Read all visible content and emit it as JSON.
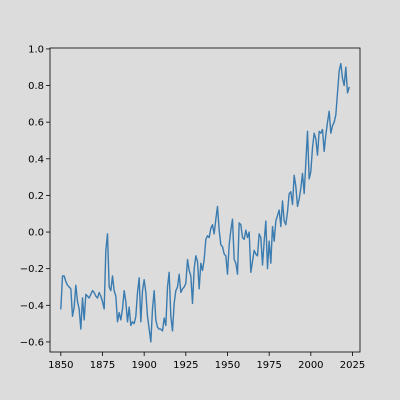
{
  "colors": {
    "background": "#dcdcdc",
    "series": "#3a7bb0",
    "axes": "#000000"
  },
  "chart_data": {
    "type": "line",
    "title": "",
    "xlabel": "",
    "ylabel": "",
    "xlim": [
      1843.5,
      2029.5
    ],
    "ylim": [
      -0.655,
      1.005
    ],
    "xticks": [
      1850,
      1875,
      1900,
      1925,
      1950,
      1975,
      2000,
      2025
    ],
    "yticks": [
      -0.6,
      -0.4,
      -0.2,
      0.0,
      0.2,
      0.4,
      0.6,
      0.8,
      1.0
    ],
    "xtick_labels": [
      "1850",
      "1875",
      "1900",
      "1925",
      "1950",
      "1975",
      "2000",
      "2025"
    ],
    "ytick_labels": [
      "−0.6",
      "−0.4",
      "−0.2",
      "0.0",
      "0.2",
      "0.4",
      "0.6",
      "0.8",
      "1.0"
    ],
    "grid": false,
    "series": [
      {
        "x": [
          1850,
          1851,
          1852,
          1853,
          1854,
          1855,
          1856,
          1857,
          1858,
          1859,
          1860,
          1861,
          1862,
          1863,
          1864,
          1865,
          1866,
          1867,
          1868,
          1869,
          1870,
          1871,
          1872,
          1873,
          1874,
          1875,
          1876,
          1877,
          1878,
          1879,
          1880,
          1881,
          1882,
          1883,
          1884,
          1885,
          1886,
          1887,
          1888,
          1889,
          1890,
          1891,
          1892,
          1893,
          1894,
          1895,
          1896,
          1897,
          1898,
          1899,
          1900,
          1901,
          1902,
          1903,
          1904,
          1905,
          1906,
          1907,
          1908,
          1909,
          1910,
          1911,
          1912,
          1913,
          1914,
          1915,
          1916,
          1917,
          1918,
          1919,
          1920,
          1921,
          1922,
          1923,
          1924,
          1925,
          1926,
          1927,
          1928,
          1929,
          1930,
          1931,
          1932,
          1933,
          1934,
          1935,
          1936,
          1937,
          1938,
          1939,
          1940,
          1941,
          1942,
          1943,
          1944,
          1945,
          1946,
          1947,
          1948,
          1949,
          1950,
          1951,
          1952,
          1953,
          1954,
          1955,
          1956,
          1957,
          1958,
          1959,
          1960,
          1961,
          1962,
          1963,
          1964,
          1965,
          1966,
          1967,
          1968,
          1969,
          1970,
          1971,
          1972,
          1973,
          1974,
          1975,
          1976,
          1977,
          1978,
          1979,
          1980,
          1981,
          1982,
          1983,
          1984,
          1985,
          1986,
          1987,
          1988,
          1989,
          1990,
          1991,
          1992,
          1993,
          1994,
          1995,
          1996,
          1997,
          1998,
          1999,
          2000,
          2001,
          2002,
          2003,
          2004,
          2005,
          2006,
          2007,
          2008,
          2009,
          2010,
          2011,
          2012,
          2013,
          2014,
          2015,
          2016,
          2017,
          2018,
          2019,
          2020,
          2021,
          2022,
          2023
        ],
        "y": [
          -0.42,
          -0.24,
          -0.24,
          -0.27,
          -0.29,
          -0.3,
          -0.31,
          -0.46,
          -0.41,
          -0.29,
          -0.38,
          -0.42,
          -0.53,
          -0.36,
          -0.48,
          -0.34,
          -0.35,
          -0.36,
          -0.34,
          -0.32,
          -0.33,
          -0.35,
          -0.36,
          -0.33,
          -0.35,
          -0.38,
          -0.42,
          -0.1,
          -0.01,
          -0.3,
          -0.32,
          -0.24,
          -0.32,
          -0.35,
          -0.49,
          -0.44,
          -0.48,
          -0.42,
          -0.32,
          -0.38,
          -0.49,
          -0.41,
          -0.51,
          -0.49,
          -0.5,
          -0.46,
          -0.33,
          -0.25,
          -0.49,
          -0.32,
          -0.26,
          -0.33,
          -0.46,
          -0.53,
          -0.6,
          -0.42,
          -0.32,
          -0.48,
          -0.52,
          -0.53,
          -0.53,
          -0.54,
          -0.47,
          -0.51,
          -0.3,
          -0.22,
          -0.46,
          -0.54,
          -0.39,
          -0.32,
          -0.3,
          -0.23,
          -0.33,
          -0.31,
          -0.3,
          -0.28,
          -0.15,
          -0.21,
          -0.24,
          -0.39,
          -0.2,
          -0.13,
          -0.16,
          -0.31,
          -0.17,
          -0.21,
          -0.15,
          -0.04,
          -0.02,
          -0.03,
          0.02,
          0.04,
          -0.01,
          0.07,
          0.14,
          0.01,
          -0.07,
          -0.08,
          -0.12,
          -0.13,
          -0.23,
          -0.07,
          0.01,
          0.07,
          -0.15,
          -0.17,
          -0.23,
          0.05,
          0.04,
          -0.03,
          -0.04,
          0.01,
          -0.03,
          0.0,
          -0.22,
          -0.16,
          -0.1,
          -0.12,
          -0.13,
          -0.01,
          -0.03,
          -0.18,
          -0.05,
          0.06,
          -0.2,
          -0.05,
          -0.17,
          0.03,
          -0.05,
          0.06,
          0.09,
          0.12,
          0.03,
          0.17,
          0.06,
          0.04,
          0.11,
          0.21,
          0.22,
          0.15,
          0.31,
          0.25,
          0.14,
          0.18,
          0.24,
          0.32,
          0.21,
          0.38,
          0.55,
          0.29,
          0.33,
          0.46,
          0.54,
          0.51,
          0.42,
          0.55,
          0.54,
          0.56,
          0.44,
          0.53,
          0.6,
          0.66,
          0.54,
          0.58,
          0.6,
          0.64,
          0.76,
          0.88,
          0.92,
          0.84,
          0.8,
          0.9,
          0.76,
          0.79
        ]
      }
    ]
  }
}
